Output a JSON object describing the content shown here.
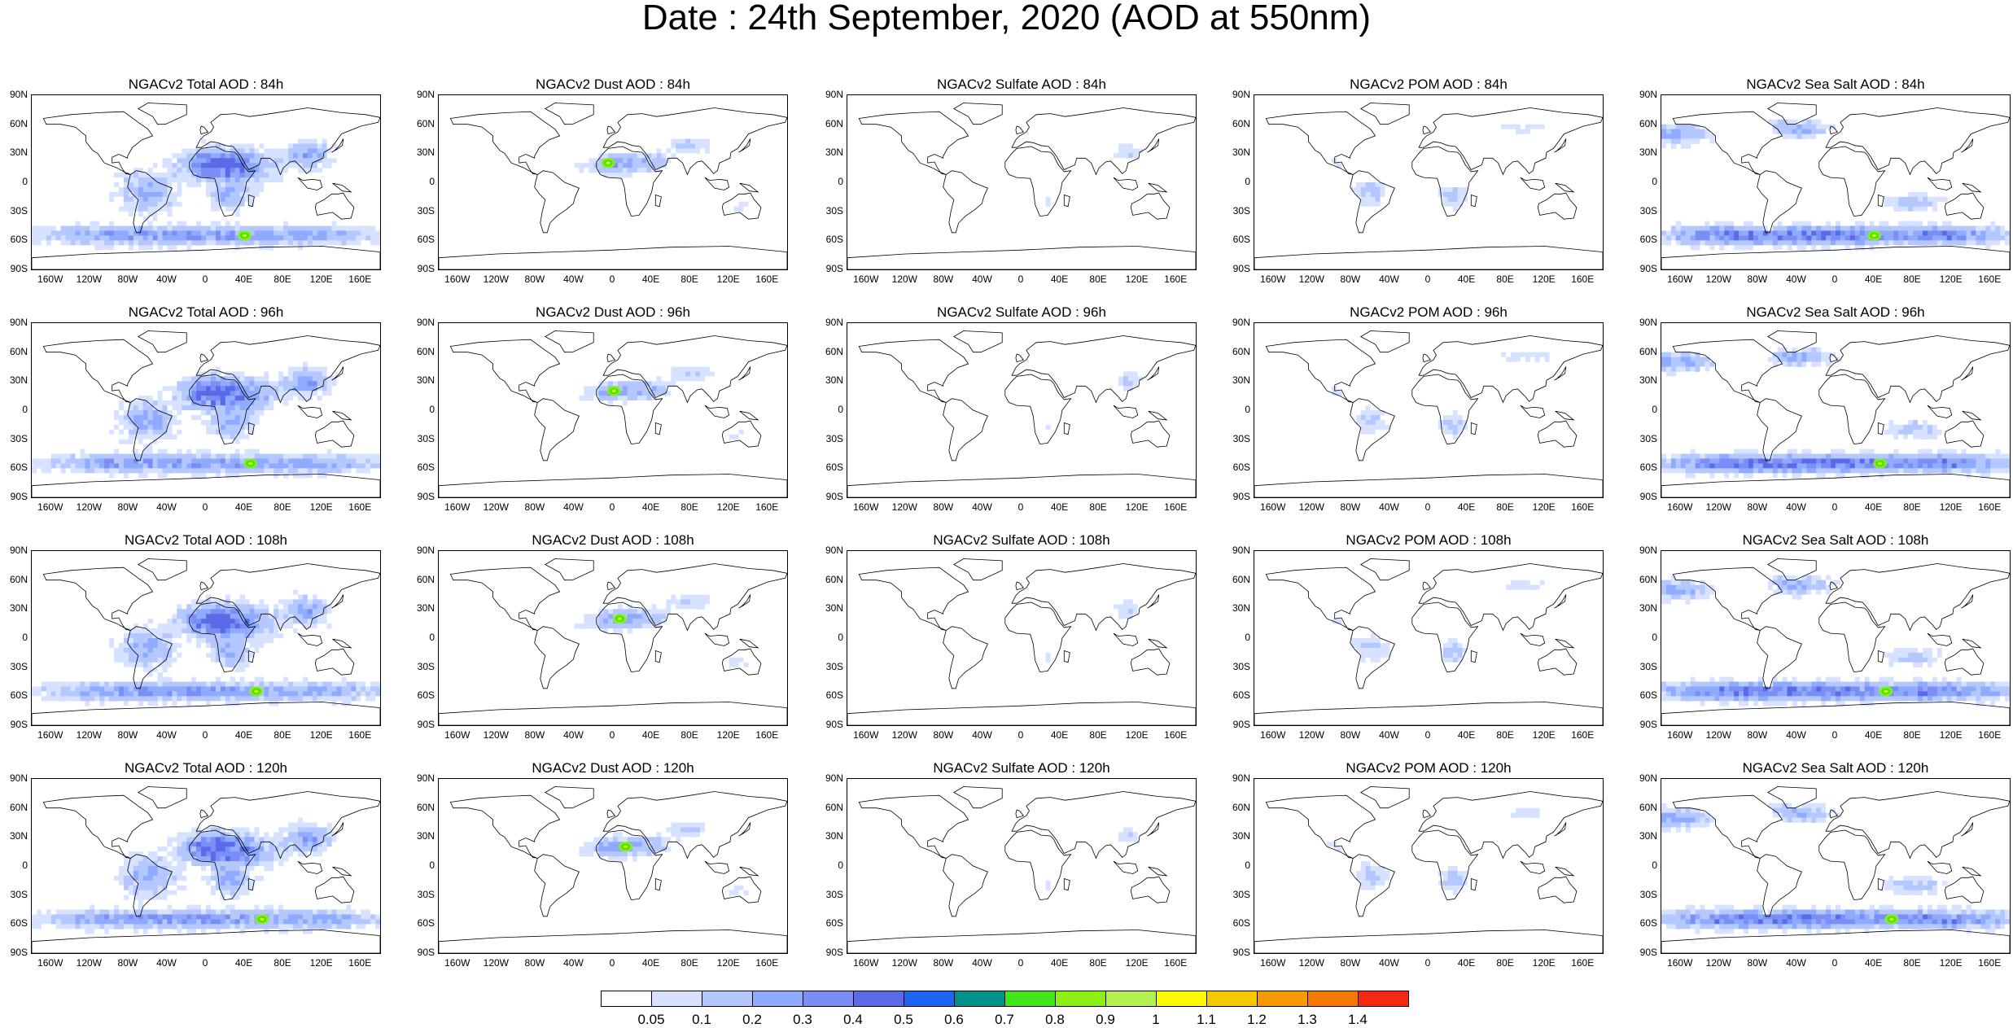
{
  "title": "Date : 24th September, 2020 (AOD at 550nm)",
  "lat_ticks": [
    "90N",
    "60N",
    "30N",
    "0",
    "30S",
    "60S",
    "90S"
  ],
  "lon_ticks": [
    "160W",
    "120W",
    "80W",
    "40W",
    "0",
    "40E",
    "80E",
    "120E",
    "160E"
  ],
  "species": [
    {
      "key": "total",
      "label": "Total",
      "intensity": 1.0,
      "land_bias": 0.2,
      "hotspot": 0.9
    },
    {
      "key": "dust",
      "label": "Dust",
      "intensity": 0.55,
      "land_bias": 1.0,
      "hotspot": 1.0
    },
    {
      "key": "sulfate",
      "label": "Sulfate",
      "intensity": 0.25,
      "land_bias": 0.8,
      "hotspot": 0.0
    },
    {
      "key": "pom",
      "label": "POM",
      "intensity": 0.35,
      "land_bias": 0.7,
      "hotspot": 0.0
    },
    {
      "key": "seasalt",
      "label": "Sea Salt",
      "intensity": 0.8,
      "land_bias": -0.6,
      "hotspot": 0.7
    }
  ],
  "panels": [
    [
      "NGACv2 Total AOD : 84h",
      "NGACv2 Dust AOD : 84h",
      "NGACv2 Sulfate AOD : 84h",
      "NGACv2 POM AOD : 84h",
      "NGACv2 Sea Salt AOD : 84h"
    ],
    [
      "NGACv2 Total AOD : 96h",
      "NGACv2 Dust AOD : 96h",
      "NGACv2 Sulfate AOD : 96h",
      "NGACv2 POM AOD : 96h",
      "NGACv2 Sea Salt AOD : 96h"
    ],
    [
      "NGACv2 Total AOD : 108h",
      "NGACv2 Dust AOD : 108h",
      "NGACv2 Sulfate AOD : 108h",
      "NGACv2 POM AOD : 108h",
      "NGACv2 Sea Salt AOD : 108h"
    ],
    [
      "NGACv2 Total AOD : 120h",
      "NGACv2 Dust AOD : 120h",
      "NGACv2 Sulfate AOD : 120h",
      "NGACv2 POM AOD : 120h",
      "NGACv2 Sea Salt  AOD : 120h"
    ]
  ],
  "colorbar": {
    "labels": [
      "0.05",
      "0.1",
      "0.2",
      "0.3",
      "0.4",
      "0.5",
      "0.6",
      "0.7",
      "0.8",
      "0.9",
      "1",
      "1.1",
      "1.2",
      "1.3",
      "1.4"
    ],
    "colors": [
      "#ffffff",
      "#d6e2ff",
      "#b4c8ff",
      "#8fabff",
      "#7b8ef5",
      "#5a6ae8",
      "#1e64f0",
      "#00908c",
      "#3ee61a",
      "#8cf014",
      "#b4f050",
      "#fafa00",
      "#f5c800",
      "#f59b00",
      "#f57800",
      "#f52814"
    ]
  }
}
